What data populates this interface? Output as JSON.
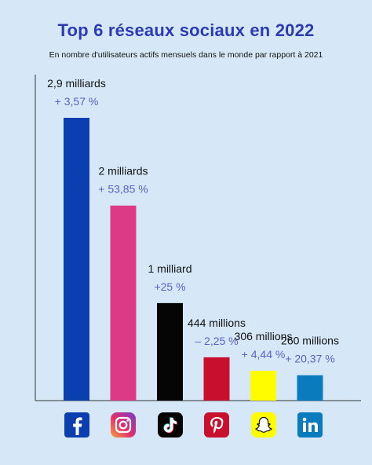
{
  "title": "Top 6 réseaux sociaux en 2022",
  "subtitle": "En nombre d'utilisateurs actifs mensuels dans le monde par rapport à 2021",
  "chart_data": {
    "type": "bar",
    "title": "Top 6 réseaux sociaux en 2022",
    "subtitle": "En nombre d'utilisateurs actifs mensuels dans le monde par rapport à 2021",
    "unit": "milliards d'utilisateurs",
    "categories": [
      "Facebook",
      "Instagram",
      "TikTok",
      "Pinterest",
      "Snapchat",
      "LinkedIn"
    ],
    "values": [
      2.9,
      2.0,
      1.0,
      0.444,
      0.306,
      0.26
    ],
    "value_labels": [
      "2,9 milliards",
      "2 milliards",
      "1 milliard",
      "444 millions",
      "306 millions",
      "260 millions"
    ],
    "change_labels": [
      "+ 3,57 %",
      "+ 53,85 %",
      "+25 %",
      "– 2,25 %",
      "+ 4,44 %",
      "+ 20,37 %"
    ],
    "changes_pct": [
      3.57,
      53.85,
      25,
      -2.25,
      4.44,
      20.37
    ],
    "colors": [
      "#0b3fb0",
      "#dc3a86",
      "#050505",
      "#c8102e",
      "#fffc00",
      "#0a7bbd"
    ],
    "icons": [
      "facebook-icon",
      "instagram-icon",
      "tiktok-icon",
      "pinterest-icon",
      "snapchat-icon",
      "linkedin-icon"
    ],
    "legend": "none",
    "grid": false
  }
}
